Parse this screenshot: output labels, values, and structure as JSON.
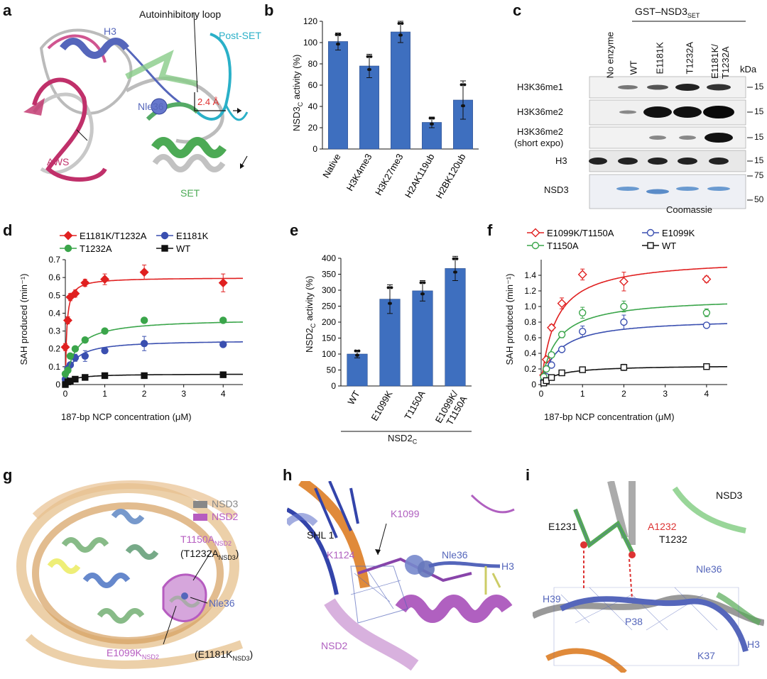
{
  "panel_labels": [
    "a",
    "b",
    "c",
    "d",
    "e",
    "f",
    "g",
    "h",
    "i"
  ],
  "panel_a": {
    "labels": {
      "autoinhibitory": "Autoinhibitory loop",
      "h3": "H3",
      "postset": "Post-SET",
      "nle36": "Nle36",
      "distance": "2.4 Å",
      "aws": "AWS",
      "set": "SET"
    },
    "colors": {
      "h3": "#5566bb",
      "postset": "#2ab0c8",
      "aws": "#c0306a",
      "set": "#4caa55",
      "distance": "#e03030"
    }
  },
  "panel_b": {
    "ylabel_main": "NSD3",
    "ylabel_sub": "C",
    "ylabel_tail": " activity (%)",
    "chart_data": {
      "type": "bar",
      "categories": [
        "Native",
        "H3K4me3",
        "H3K27me3",
        "H2AK119ub",
        "H2BK120ub"
      ],
      "values": [
        101,
        78,
        110,
        25,
        46
      ],
      "errors": [
        8,
        11,
        10,
        5,
        18
      ],
      "ylim": [
        0,
        120
      ],
      "yticks": [
        0,
        20,
        40,
        60,
        80,
        100,
        120
      ],
      "color": "#3e6fbf"
    }
  },
  "panel_c": {
    "header": "GST–NSD3",
    "header_sub": "SET",
    "lanes": [
      "No enzyme",
      "WT",
      "E1181K",
      "T1232A",
      "E1181K/\nT1232A"
    ],
    "kda": "kDa",
    "rows": [
      {
        "label": "H3K36me1",
        "marker": "15"
      },
      {
        "label": "H3K36me2",
        "marker": "15"
      },
      {
        "label": "H3K36me2",
        "label2": "(short expo)",
        "marker": "15"
      },
      {
        "label": "H3",
        "marker": "15"
      },
      {
        "label": "NSD3",
        "marker_top": "75",
        "marker_bot": "50"
      }
    ],
    "footer": "Coomassie"
  },
  "panel_d": {
    "ylabel": "SAH produced (min⁻¹)",
    "xlabel": "187-bp NCP concentration (μM)",
    "legend": [
      "E1181K/T1232A",
      "E1181K",
      "T1232A",
      "WT"
    ],
    "chart_data": {
      "type": "scatter",
      "xlim": [
        0,
        4.5
      ],
      "ylim": [
        0,
        0.7
      ],
      "xticks": [
        0,
        1,
        2,
        3,
        4
      ],
      "yticks": [
        0,
        0.1,
        0.2,
        0.3,
        0.4,
        0.5,
        0.6,
        0.7
      ],
      "x": [
        0,
        0.0625,
        0.125,
        0.25,
        0.5,
        1,
        2,
        4
      ],
      "series": [
        {
          "name": "E1181K/T1232A",
          "color": "#e02020",
          "marker": "diamond",
          "y": [
            0.21,
            0.36,
            0.49,
            0.51,
            0.57,
            0.59,
            0.63,
            0.57
          ],
          "err": [
            0.02,
            0.02,
            0.02,
            0.02,
            0.02,
            0.03,
            0.04,
            0.05
          ],
          "vmax": 0.6,
          "km": 0.035
        },
        {
          "name": "E1181K",
          "color": "#3a4fb0",
          "marker": "circle",
          "y": [
            0.03,
            0.09,
            0.11,
            0.15,
            0.16,
            0.19,
            0.23,
            0.225
          ],
          "err": [
            0.01,
            0.01,
            0.01,
            0.02,
            0.03,
            0.01,
            0.04,
            0.01
          ],
          "vmax": 0.25,
          "km": 0.2
        },
        {
          "name": "T1232A",
          "color": "#3aa54a",
          "marker": "circle",
          "y": [
            0.06,
            0.08,
            0.16,
            0.2,
            0.25,
            0.3,
            0.36,
            0.36
          ],
          "err": [
            0.01,
            0.01,
            0.01,
            0.01,
            0.01,
            0.01,
            0.01,
            0.01
          ],
          "vmax": 0.37,
          "km": 0.25
        },
        {
          "name": "WT",
          "color": "#111111",
          "marker": "square",
          "y": [
            0.0,
            0.015,
            0.02,
            0.03,
            0.04,
            0.05,
            0.05,
            0.055
          ],
          "err": [
            0,
            0,
            0,
            0,
            0,
            0,
            0,
            0
          ],
          "vmax": 0.06,
          "km": 0.2
        }
      ]
    }
  },
  "panel_e": {
    "ylabel_main": "NSD2",
    "ylabel_sub": "C",
    "ylabel_tail": " activity (%)",
    "group_label": "NSD2",
    "group_sub": "C",
    "chart_data": {
      "type": "bar",
      "categories": [
        "WT",
        "E1099K",
        "T1150A",
        "E1099K/\nT1150A"
      ],
      "values": [
        100,
        272,
        298,
        368
      ],
      "errors": [
        12,
        45,
        32,
        38
      ],
      "ylim": [
        0,
        400
      ],
      "yticks": [
        0,
        50,
        100,
        150,
        200,
        250,
        300,
        350,
        400
      ],
      "color": "#3e6fbf"
    }
  },
  "panel_f": {
    "ylabel": "SAH produced (min⁻¹)",
    "xlabel": "187-bp NCP concentration (μM)",
    "legend": [
      "E1099K/T1150A",
      "E1099K",
      "T1150A",
      "WT"
    ],
    "chart_data": {
      "type": "scatter",
      "xlim": [
        0,
        4.5
      ],
      "ylim": [
        0,
        1.6
      ],
      "xticks": [
        0,
        1,
        2,
        3,
        4
      ],
      "yticks": [
        0,
        0.2,
        0.4,
        0.6,
        0.8,
        1.0,
        1.2,
        1.4
      ],
      "x": [
        0.0625,
        0.125,
        0.25,
        0.5,
        1,
        2,
        4
      ],
      "series": [
        {
          "name": "E1099K/T1150A",
          "color": "#e02020",
          "marker": "open-diamond",
          "y": [
            0.12,
            0.32,
            0.73,
            1.04,
            1.41,
            1.32,
            1.35
          ],
          "err": [
            0.03,
            0.04,
            0.04,
            0.07,
            0.07,
            0.12,
            0.04
          ],
          "vmax": 1.62,
          "km": 0.35
        },
        {
          "name": "E1099K",
          "color": "#3a4fb0",
          "marker": "open-circle",
          "y": [
            0.05,
            0.1,
            0.25,
            0.45,
            0.68,
            0.8,
            0.76
          ],
          "err": [
            0.02,
            0.02,
            0.02,
            0.03,
            0.07,
            0.09,
            0.02
          ],
          "vmax": 0.85,
          "km": 0.4
        },
        {
          "name": "T1150A",
          "color": "#3aa54a",
          "marker": "open-circle",
          "y": [
            0.1,
            0.2,
            0.38,
            0.64,
            0.92,
            1.0,
            0.92
          ],
          "err": [
            0.02,
            0.02,
            0.03,
            0.04,
            0.07,
            0.07,
            0.05
          ],
          "vmax": 1.12,
          "km": 0.38
        },
        {
          "name": "WT",
          "color": "#111111",
          "marker": "open-square",
          "y": [
            0.02,
            0.05,
            0.09,
            0.15,
            0.19,
            0.22,
            0.23
          ],
          "err": [
            0.01,
            0.01,
            0.02,
            0.02,
            0.03,
            0.04,
            0.02
          ],
          "vmax": 0.25,
          "km": 0.4
        }
      ]
    }
  },
  "panel_g": {
    "legend": [
      {
        "name": "NSD3",
        "color": "#888888"
      },
      {
        "name": "NSD2",
        "color": "#b65cc0"
      }
    ],
    "t1150a": "T1150A",
    "t1150a_sub": "NSD2",
    "t1232a": "(T1232A",
    "t1232a_sub": "NSD3",
    "close": ")",
    "nle36": "Nle36",
    "e1099k": "E1099K",
    "e1099k_sub": "NSD2",
    "e1181k": "(E1181K",
    "e1181k_sub": "NSD3"
  },
  "panel_h": {
    "shl": "SHL 1",
    "k1099": "K1099",
    "k1124": "K1124",
    "nle36": "Nle36",
    "h3": "H3",
    "nsd2": "NSD2"
  },
  "panel_i": {
    "nsd3": "NSD3",
    "e1231": "E1231",
    "a1232": "A1232",
    "t1232": "T1232",
    "nle36": "Nle36",
    "h39": "H39",
    "p38": "P38",
    "k37": "K37",
    "h3": "H3"
  }
}
